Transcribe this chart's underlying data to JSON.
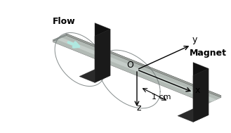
{
  "bg_color": "#f0f0f0",
  "channel_color_top": "#b0b8b0",
  "channel_color_side": "#888f88",
  "channel_color_edge": "#909890",
  "magnet_color": "#111111",
  "axis_label_fontsize": 9,
  "annotation_fontsize": 8,
  "label_fontsize": 9,
  "flow_arrow_color": "#b0e8e0",
  "title": "",
  "z_label": "z",
  "x_label": "x",
  "y_label": "y",
  "o_label": "O",
  "scale_label": "1 cm",
  "flow_label": "Flow",
  "magnet_label": "Magnet"
}
